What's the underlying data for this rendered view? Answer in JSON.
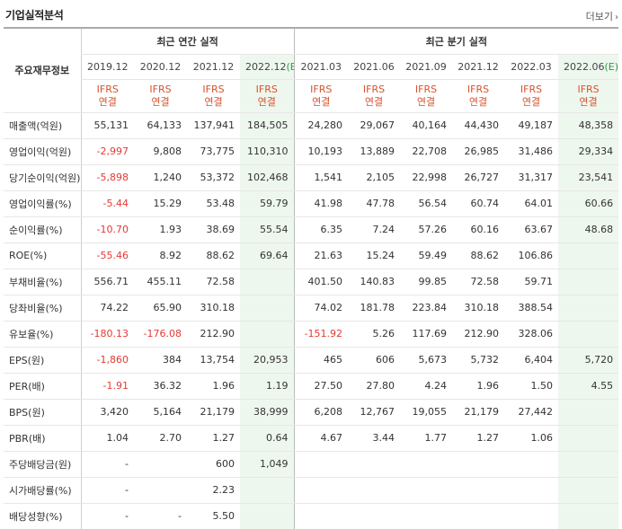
{
  "header": {
    "title": "기업실적분석",
    "more_label": "더보기"
  },
  "table": {
    "label_header": "주요재무정보",
    "annual_group": "최근 연간 실적",
    "quarter_group": "최근 분기 실적",
    "periods": [
      "2019.12",
      "2020.12",
      "2021.12",
      "2022.12",
      "2021.03",
      "2021.06",
      "2021.09",
      "2021.12",
      "2022.03",
      "2022.06"
    ],
    "estimate_marks": [
      "",
      "",
      "",
      "(E)",
      "",
      "",
      "",
      "",
      "",
      "(E)"
    ],
    "standard": "IFRS",
    "basis": "연결",
    "rows": [
      {
        "label": "매출액(억원)",
        "values": [
          "55,131",
          "64,133",
          "137,941",
          "184,505",
          "24,280",
          "29,067",
          "40,164",
          "44,430",
          "49,187",
          "48,358"
        ]
      },
      {
        "label": "영업이익(억원)",
        "values": [
          "-2,997",
          "9,808",
          "73,775",
          "110,310",
          "10,193",
          "13,889",
          "22,708",
          "26,985",
          "31,486",
          "29,334"
        ]
      },
      {
        "label": "당기순이익(억원)",
        "values": [
          "-5,898",
          "1,240",
          "53,372",
          "102,468",
          "1,541",
          "2,105",
          "22,998",
          "26,727",
          "31,317",
          "23,541"
        ]
      },
      {
        "label": "영업이익률(%)",
        "values": [
          "-5.44",
          "15.29",
          "53.48",
          "59.79",
          "41.98",
          "47.78",
          "56.54",
          "60.74",
          "64.01",
          "60.66"
        ]
      },
      {
        "label": "순이익률(%)",
        "values": [
          "-10.70",
          "1.93",
          "38.69",
          "55.54",
          "6.35",
          "7.24",
          "57.26",
          "60.16",
          "63.67",
          "48.68"
        ]
      },
      {
        "label": "ROE(%)",
        "values": [
          "-55.46",
          "8.92",
          "88.62",
          "69.64",
          "21.63",
          "15.24",
          "59.49",
          "88.62",
          "106.86",
          ""
        ]
      },
      {
        "label": "부채비율(%)",
        "values": [
          "556.71",
          "455.11",
          "72.58",
          "",
          "401.50",
          "140.83",
          "99.85",
          "72.58",
          "59.71",
          ""
        ]
      },
      {
        "label": "당좌비율(%)",
        "values": [
          "74.22",
          "65.90",
          "310.18",
          "",
          "74.02",
          "181.78",
          "223.84",
          "310.18",
          "388.54",
          ""
        ]
      },
      {
        "label": "유보율(%)",
        "values": [
          "-180.13",
          "-176.08",
          "212.90",
          "",
          "-151.92",
          "5.26",
          "117.69",
          "212.90",
          "328.06",
          ""
        ]
      },
      {
        "label": "EPS(원)",
        "values": [
          "-1,860",
          "384",
          "13,754",
          "20,953",
          "465",
          "606",
          "5,673",
          "5,732",
          "6,404",
          "5,720"
        ]
      },
      {
        "label": "PER(배)",
        "values": [
          "-1.91",
          "36.32",
          "1.96",
          "1.19",
          "27.50",
          "27.80",
          "4.24",
          "1.96",
          "1.50",
          "4.55"
        ]
      },
      {
        "label": "BPS(원)",
        "values": [
          "3,420",
          "5,164",
          "21,179",
          "38,999",
          "6,208",
          "12,767",
          "19,055",
          "21,179",
          "27,442",
          ""
        ]
      },
      {
        "label": "PBR(배)",
        "values": [
          "1.04",
          "2.70",
          "1.27",
          "0.64",
          "4.67",
          "3.44",
          "1.77",
          "1.27",
          "1.06",
          ""
        ]
      },
      {
        "label": "주당배당금(원)",
        "values": [
          "-",
          "",
          "600",
          "1,049",
          "",
          "",
          "",
          "",
          "",
          ""
        ]
      },
      {
        "label": "시가배당률(%)",
        "values": [
          "-",
          "",
          "2.23",
          "",
          "",
          "",
          "",
          "",
          "",
          ""
        ]
      },
      {
        "label": "배당성향(%)",
        "values": [
          "-",
          "-",
          "5.50",
          "",
          "",
          "",
          "",
          "",
          "",
          ""
        ]
      }
    ]
  },
  "colors": {
    "negative": "#e53935",
    "ifrs": "#d6532d",
    "estimate": "#2c9a4c",
    "estimate_bg": "#eef7ee"
  }
}
